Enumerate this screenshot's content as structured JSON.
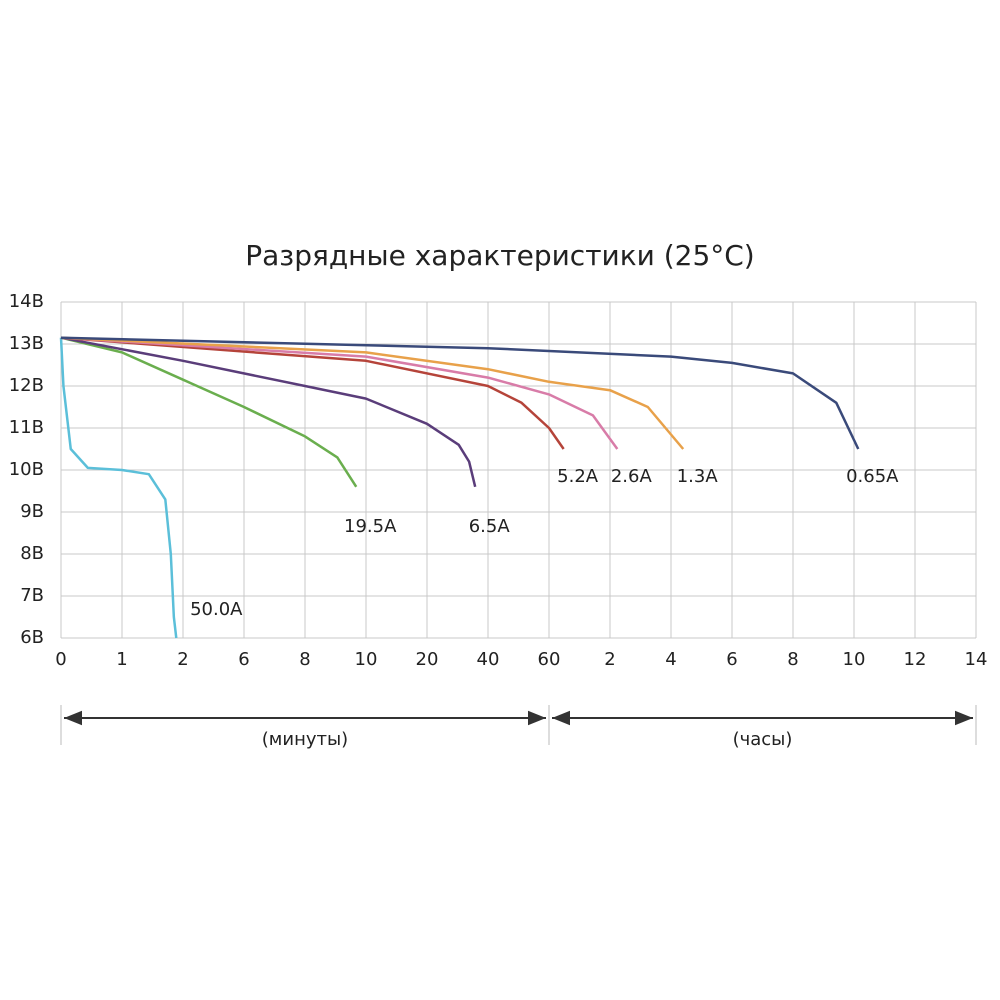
{
  "chart_data": {
    "type": "line",
    "title": "Разрядные характеристики (25°C)",
    "xlim": [
      0,
      15
    ],
    "xticks": [
      {
        "value": 0,
        "label": "0"
      },
      {
        "value": 1,
        "label": "1"
      },
      {
        "value": 2,
        "label": "2"
      },
      {
        "value": 3,
        "label": "6"
      },
      {
        "value": 4,
        "label": "8"
      },
      {
        "value": 5,
        "label": "10"
      },
      {
        "value": 6,
        "label": "20"
      },
      {
        "value": 7,
        "label": "40"
      },
      {
        "value": 8,
        "label": "60"
      },
      {
        "value": 9,
        "label": "2"
      },
      {
        "value": 10,
        "label": "4"
      },
      {
        "value": 11,
        "label": "6"
      },
      {
        "value": 12,
        "label": "8"
      },
      {
        "value": 13,
        "label": "10"
      },
      {
        "value": 14,
        "label": "12"
      },
      {
        "value": 15,
        "label": "14"
      }
    ],
    "ylim": [
      6,
      14
    ],
    "yticks": [
      {
        "value": 6,
        "label": "6В"
      },
      {
        "value": 7,
        "label": "7В"
      },
      {
        "value": 8,
        "label": "8В"
      },
      {
        "value": 9,
        "label": "9В"
      },
      {
        "value": 10,
        "label": "10В"
      },
      {
        "value": 11,
        "label": "11В"
      },
      {
        "value": 12,
        "label": "12В"
      },
      {
        "value": 13,
        "label": "13В"
      },
      {
        "value": 14,
        "label": "14В"
      }
    ],
    "grid": true,
    "spans": [
      {
        "label": "(минуты)",
        "from": 0,
        "to": 8
      },
      {
        "label": "(часы)",
        "from": 8,
        "to": 15
      }
    ],
    "series": [
      {
        "name": "50.0A",
        "color": "#5bbfd9",
        "x": [
          0,
          0.04,
          0.16,
          0.44,
          1,
          1.44,
          1.71,
          1.8,
          1.85,
          1.89
        ],
        "values": [
          13.15,
          12,
          10.5,
          10.05,
          10,
          9.9,
          9.3,
          8,
          6.5,
          6
        ]
      },
      {
        "name": "19.5A",
        "color": "#6aae4e",
        "x": [
          0,
          1,
          2,
          3,
          4,
          4.53,
          4.84
        ],
        "values": [
          13.15,
          12.8,
          12.15,
          11.5,
          10.8,
          10.3,
          9.6
        ]
      },
      {
        "name": "6.5A",
        "color": "#5a3d7a",
        "x": [
          0,
          2,
          4,
          5,
          6,
          6.52,
          6.69,
          6.79
        ],
        "values": [
          13.15,
          12.6,
          12,
          11.7,
          11.1,
          10.6,
          10.2,
          9.6
        ]
      },
      {
        "name": "5.2A",
        "color": "#b5443a",
        "x": [
          0,
          5,
          7,
          7.55,
          8,
          8.24
        ],
        "values": [
          13.15,
          12.6,
          12,
          11.6,
          11,
          10.5
        ]
      },
      {
        "name": "2.6A",
        "color": "#d87ca8",
        "x": [
          0,
          5,
          7,
          8,
          8.72,
          9.12
        ],
        "values": [
          13.15,
          12.7,
          12.2,
          11.8,
          11.3,
          10.5
        ]
      },
      {
        "name": "1.3A",
        "color": "#e8a14a",
        "x": [
          0,
          5,
          7,
          8,
          9,
          9.62,
          10.2
        ],
        "values": [
          13.15,
          12.8,
          12.4,
          12.1,
          11.9,
          11.5,
          10.5
        ]
      },
      {
        "name": "0.65A",
        "color": "#3a4a7a",
        "x": [
          0,
          7,
          10,
          11,
          12,
          12.71,
          13.07
        ],
        "values": [
          13.15,
          12.9,
          12.7,
          12.55,
          12.3,
          11.6,
          10.5
        ]
      }
    ]
  }
}
